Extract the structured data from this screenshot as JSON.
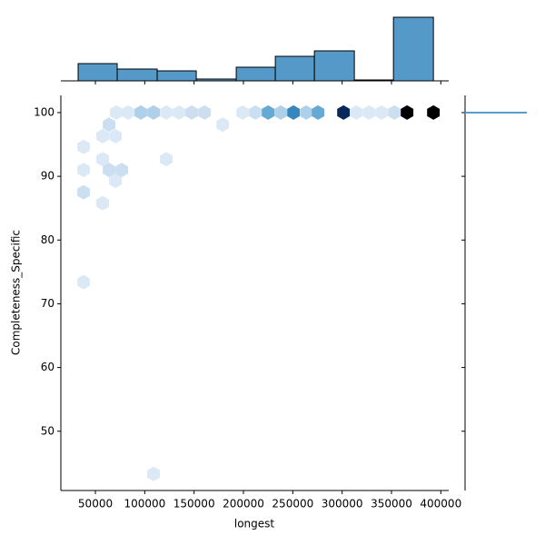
{
  "chart_data": {
    "type": "hexbin",
    "x_label": "longest",
    "y_label": "Completeness_Specific",
    "xlim": [
      15000,
      408000
    ],
    "ylim": [
      40.7,
      102.7
    ],
    "xticks": [
      50000,
      100000,
      150000,
      200000,
      250000,
      300000,
      350000,
      400000
    ],
    "yticks": [
      50,
      60,
      70,
      80,
      90,
      100
    ],
    "x": [
      71200,
      83100,
      96000,
      108900,
      121800,
      134700,
      147600,
      160500,
      199200,
      212100,
      225000,
      237800,
      250700,
      263600,
      275600,
      301400,
      314300,
      327200,
      340000,
      352900,
      365800,
      392500,
      38000,
      38000,
      38000,
      38000,
      63800,
      57400,
      70300,
      57400,
      63800,
      76700,
      70300,
      57400,
      178900,
      121800,
      108900
    ],
    "y": [
      100,
      100,
      100,
      100,
      100,
      100,
      100,
      100,
      100,
      100,
      100,
      100,
      100,
      100,
      100,
      100,
      100,
      100,
      100,
      100,
      100,
      100,
      94.6,
      91.0,
      87.5,
      73.4,
      98.1,
      96.3,
      96.3,
      92.7,
      91.0,
      91.0,
      89.3,
      85.8,
      98.1,
      92.7,
      43.3
    ],
    "counts": [
      1,
      1,
      3,
      3,
      1,
      1,
      2,
      2,
      1,
      2,
      5,
      3,
      7,
      3,
      5,
      10,
      1,
      1,
      1,
      2,
      12,
      12,
      1,
      1,
      2,
      1,
      2,
      1,
      1,
      1,
      2,
      2,
      1,
      1,
      1,
      1,
      1
    ],
    "x_hist": {
      "bins": [
        32500,
        72100,
        112600,
        152200,
        192700,
        232300,
        271900,
        312400,
        352000,
        392500
      ],
      "counts": [
        19,
        13,
        11,
        2,
        15,
        27,
        33,
        1,
        70
      ],
      "color": "#5499c7"
    },
    "y_hist": {
      "bins": [
        99.9,
        100.1
      ],
      "counts": [
        70
      ],
      "color": "#5499c7"
    }
  }
}
